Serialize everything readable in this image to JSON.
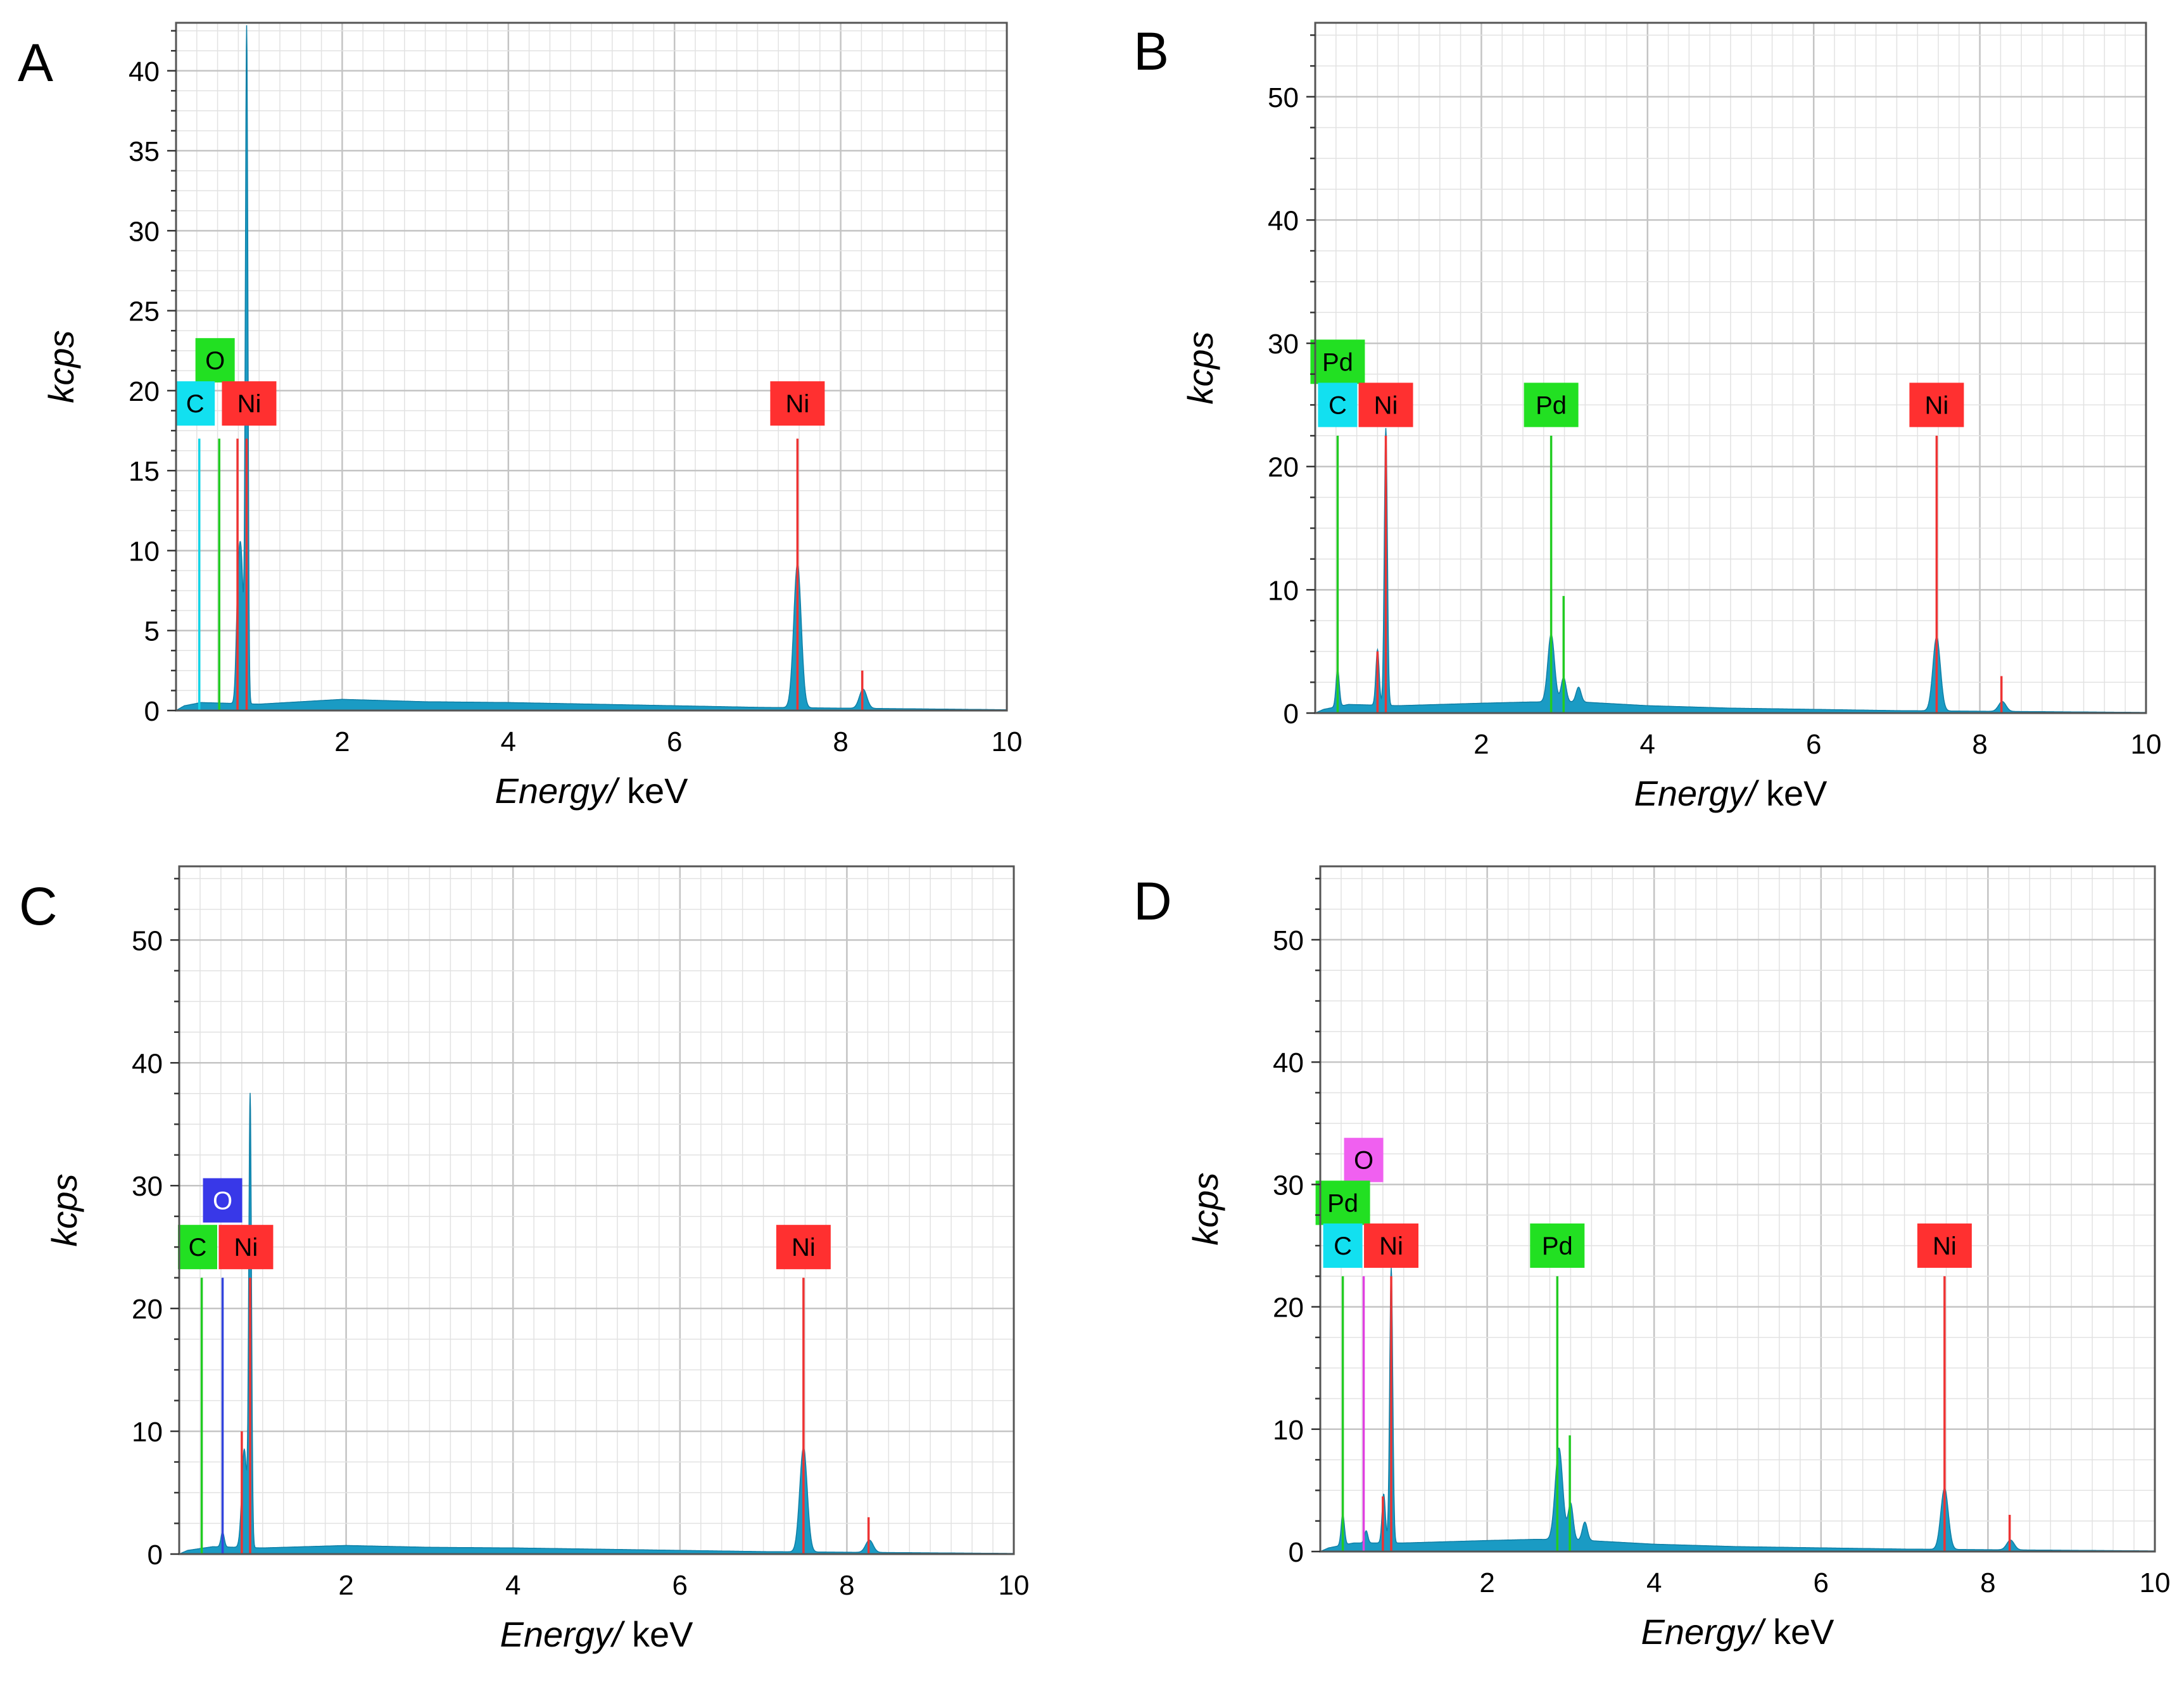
{
  "chart_data": [
    {
      "type": "area",
      "panel_label": "A",
      "xlabel_italic": "Energy/",
      "xlabel_unit": " keV",
      "ylabel": "kcps",
      "xlim": [
        0,
        10
      ],
      "ylim": [
        0,
        43
      ],
      "xticks": [
        2,
        4,
        6,
        8,
        10
      ],
      "yticks": [
        0,
        5,
        10,
        15,
        20,
        25,
        30,
        35,
        40
      ],
      "grid": true,
      "spectrum_color": "#1a9bc4",
      "spectrum": {
        "baseline": [
          [
            0.0,
            0
          ],
          [
            0.1,
            0.3
          ],
          [
            0.3,
            0.5
          ],
          [
            1.0,
            0.4
          ],
          [
            2.0,
            0.7
          ],
          [
            3.0,
            0.55
          ],
          [
            4.0,
            0.5
          ],
          [
            5.0,
            0.4
          ],
          [
            6.0,
            0.3
          ],
          [
            7.0,
            0.2
          ],
          [
            8.0,
            0.15
          ],
          [
            9.0,
            0.1
          ],
          [
            10.0,
            0.05
          ]
        ],
        "peaks": [
          {
            "center": 0.85,
            "height": 41.8,
            "width": 0.015
          },
          {
            "center": 0.78,
            "height": 9.5,
            "width": 0.03
          },
          {
            "center": 0.74,
            "height": 3.5,
            "width": 0.02
          },
          {
            "center": 7.48,
            "height": 9.0,
            "width": 0.045
          },
          {
            "center": 8.27,
            "height": 1.2,
            "width": 0.045
          }
        ]
      },
      "element_lines": [
        {
          "energy": 0.28,
          "height": 17,
          "color": "#12d4e6"
        },
        {
          "energy": 0.52,
          "height": 17,
          "color": "#22cc22"
        },
        {
          "energy": 0.74,
          "height": 17,
          "color": "#ee3333"
        },
        {
          "energy": 0.85,
          "height": 17,
          "color": "#ee3333"
        },
        {
          "energy": 7.48,
          "height": 17,
          "color": "#ee3333"
        },
        {
          "energy": 8.26,
          "height": 2.5,
          "color": "#ee3333"
        }
      ],
      "tags": [
        {
          "text": "O",
          "energy": 0.47,
          "value": 21.9,
          "bg": "#22e022",
          "fg": "#000000"
        },
        {
          "text": "C",
          "energy": 0.23,
          "value": 19.2,
          "bg": "#12e0f0",
          "fg": "#000000"
        },
        {
          "text": "Ni",
          "energy": 0.88,
          "value": 19.2,
          "bg": "#ff3030",
          "fg": "#000000"
        },
        {
          "text": "Ni",
          "energy": 7.48,
          "value": 19.2,
          "bg": "#ff3030",
          "fg": "#000000"
        }
      ]
    },
    {
      "type": "area",
      "panel_label": "B",
      "xlabel_italic": "Energy/",
      "xlabel_unit": " keV",
      "ylabel": "kcps",
      "xlim": [
        0,
        10
      ],
      "ylim": [
        0,
        56
      ],
      "xticks": [
        2,
        4,
        6,
        8,
        10
      ],
      "yticks": [
        0,
        10,
        20,
        30,
        40,
        50
      ],
      "grid": true,
      "spectrum_color": "#1a9bc4",
      "spectrum": {
        "baseline": [
          [
            0.0,
            0
          ],
          [
            0.1,
            0.3
          ],
          [
            0.4,
            0.7
          ],
          [
            1.0,
            0.6
          ],
          [
            2.0,
            0.8
          ],
          [
            2.6,
            0.9
          ],
          [
            3.2,
            0.9
          ],
          [
            4.0,
            0.6
          ],
          [
            5.0,
            0.4
          ],
          [
            6.0,
            0.3
          ],
          [
            7.0,
            0.2
          ],
          [
            8.0,
            0.15
          ],
          [
            9.0,
            0.1
          ],
          [
            10.0,
            0.05
          ]
        ],
        "peaks": [
          {
            "center": 0.27,
            "height": 3.0,
            "width": 0.02
          },
          {
            "center": 0.85,
            "height": 22.5,
            "width": 0.018
          },
          {
            "center": 0.75,
            "height": 4.5,
            "width": 0.02
          },
          {
            "center": 2.84,
            "height": 5.5,
            "width": 0.04
          },
          {
            "center": 2.99,
            "height": 2.0,
            "width": 0.03
          },
          {
            "center": 3.17,
            "height": 1.2,
            "width": 0.03
          },
          {
            "center": 7.48,
            "height": 6.0,
            "width": 0.045
          },
          {
            "center": 8.27,
            "height": 0.8,
            "width": 0.045
          }
        ]
      },
      "element_lines": [
        {
          "energy": 0.27,
          "height": 22.5,
          "color": "#22cc22"
        },
        {
          "energy": 0.75,
          "height": 5,
          "color": "#ee3333"
        },
        {
          "energy": 0.85,
          "height": 22.5,
          "color": "#ee3333"
        },
        {
          "energy": 2.84,
          "height": 22.5,
          "color": "#22cc22"
        },
        {
          "energy": 2.99,
          "height": 9.5,
          "color": "#22cc22"
        },
        {
          "energy": 7.48,
          "height": 22.5,
          "color": "#ee3333"
        },
        {
          "energy": 8.26,
          "height": 3,
          "color": "#ee3333"
        }
      ],
      "tags": [
        {
          "text": "Pd",
          "energy": 0.27,
          "value": 28.5,
          "bg": "#22e022",
          "fg": "#000000"
        },
        {
          "text": "C",
          "energy": 0.27,
          "value": 25.0,
          "bg": "#12e0f0",
          "fg": "#000000"
        },
        {
          "text": "Ni",
          "energy": 0.85,
          "value": 25.0,
          "bg": "#ff3030",
          "fg": "#000000"
        },
        {
          "text": "Pd",
          "energy": 2.84,
          "value": 25.0,
          "bg": "#22e022",
          "fg": "#000000"
        },
        {
          "text": "Ni",
          "energy": 7.48,
          "value": 25.0,
          "bg": "#ff3030",
          "fg": "#000000"
        }
      ]
    },
    {
      "type": "area",
      "panel_label": "C",
      "xlabel_italic": "Energy/",
      "xlabel_unit": " keV",
      "ylabel": "kcps",
      "xlim": [
        0,
        10
      ],
      "ylim": [
        0,
        56
      ],
      "xticks": [
        2,
        4,
        6,
        8,
        10
      ],
      "yticks": [
        0,
        10,
        20,
        30,
        40,
        50
      ],
      "grid": true,
      "spectrum_color": "#1a9bc4",
      "spectrum": {
        "baseline": [
          [
            0.0,
            0
          ],
          [
            0.1,
            0.3
          ],
          [
            0.4,
            0.6
          ],
          [
            1.0,
            0.5
          ],
          [
            2.0,
            0.7
          ],
          [
            3.0,
            0.55
          ],
          [
            4.0,
            0.5
          ],
          [
            5.0,
            0.4
          ],
          [
            6.0,
            0.3
          ],
          [
            7.0,
            0.2
          ],
          [
            8.0,
            0.15
          ],
          [
            9.0,
            0.1
          ],
          [
            10.0,
            0.05
          ]
        ],
        "peaks": [
          {
            "center": 0.52,
            "height": 1.2,
            "width": 0.02
          },
          {
            "center": 0.85,
            "height": 36.5,
            "width": 0.016
          },
          {
            "center": 0.78,
            "height": 8.0,
            "width": 0.03
          },
          {
            "center": 7.48,
            "height": 8.5,
            "width": 0.045
          },
          {
            "center": 8.27,
            "height": 1.0,
            "width": 0.045
          }
        ]
      },
      "element_lines": [
        {
          "energy": 0.27,
          "height": 22.5,
          "color": "#22cc22"
        },
        {
          "energy": 0.52,
          "height": 22.5,
          "color": "#3344dd"
        },
        {
          "energy": 0.75,
          "height": 10,
          "color": "#ee3333"
        },
        {
          "energy": 0.85,
          "height": 22.5,
          "color": "#ee3333"
        },
        {
          "energy": 7.48,
          "height": 22.5,
          "color": "#ee3333"
        },
        {
          "energy": 8.26,
          "height": 3,
          "color": "#ee3333"
        }
      ],
      "tags": [
        {
          "text": "O",
          "energy": 0.52,
          "value": 28.8,
          "bg": "#3838e8",
          "fg": "#ffffff"
        },
        {
          "text": "C",
          "energy": 0.22,
          "value": 25.0,
          "bg": "#22e022",
          "fg": "#000000"
        },
        {
          "text": "Ni",
          "energy": 0.8,
          "value": 25.0,
          "bg": "#ff3030",
          "fg": "#000000"
        },
        {
          "text": "Ni",
          "energy": 7.48,
          "value": 25.0,
          "bg": "#ff3030",
          "fg": "#000000"
        }
      ]
    },
    {
      "type": "area",
      "panel_label": "D",
      "xlabel_italic": "Energy/",
      "xlabel_unit": " keV",
      "ylabel": "kcps",
      "xlim": [
        0,
        10
      ],
      "ylim": [
        0,
        56
      ],
      "xticks": [
        2,
        4,
        6,
        8,
        10
      ],
      "yticks": [
        0,
        10,
        20,
        30,
        40,
        50
      ],
      "grid": true,
      "spectrum_color": "#1a9bc4",
      "spectrum": {
        "baseline": [
          [
            0.0,
            0
          ],
          [
            0.1,
            0.3
          ],
          [
            0.4,
            0.7
          ],
          [
            1.0,
            0.7
          ],
          [
            2.0,
            0.9
          ],
          [
            2.6,
            1.0
          ],
          [
            3.2,
            0.9
          ],
          [
            4.0,
            0.6
          ],
          [
            5.0,
            0.4
          ],
          [
            6.0,
            0.3
          ],
          [
            7.0,
            0.2
          ],
          [
            8.0,
            0.15
          ],
          [
            9.0,
            0.1
          ],
          [
            10.0,
            0.05
          ]
        ],
        "peaks": [
          {
            "center": 0.27,
            "height": 2.5,
            "width": 0.02
          },
          {
            "center": 0.55,
            "height": 1.0,
            "width": 0.02
          },
          {
            "center": 0.85,
            "height": 22.5,
            "width": 0.018
          },
          {
            "center": 0.76,
            "height": 4.0,
            "width": 0.02
          },
          {
            "center": 2.86,
            "height": 7.5,
            "width": 0.045
          },
          {
            "center": 3.0,
            "height": 3.0,
            "width": 0.03
          },
          {
            "center": 3.17,
            "height": 1.5,
            "width": 0.03
          },
          {
            "center": 7.48,
            "height": 5.0,
            "width": 0.045
          },
          {
            "center": 8.27,
            "height": 0.8,
            "width": 0.045
          }
        ]
      },
      "element_lines": [
        {
          "energy": 0.27,
          "height": 22.5,
          "color": "#22cc22"
        },
        {
          "energy": 0.52,
          "height": 22.5,
          "color": "#e040e0"
        },
        {
          "energy": 0.75,
          "height": 4.5,
          "color": "#ee3333"
        },
        {
          "energy": 0.85,
          "height": 22.5,
          "color": "#ee3333"
        },
        {
          "energy": 2.84,
          "height": 22.5,
          "color": "#22cc22"
        },
        {
          "energy": 2.99,
          "height": 9.5,
          "color": "#22cc22"
        },
        {
          "energy": 7.48,
          "height": 22.5,
          "color": "#ee3333"
        },
        {
          "energy": 8.26,
          "height": 3,
          "color": "#ee3333"
        }
      ],
      "tags": [
        {
          "text": "O",
          "energy": 0.52,
          "value": 32.0,
          "bg": "#f060f0",
          "fg": "#000000"
        },
        {
          "text": "Pd",
          "energy": 0.27,
          "value": 28.5,
          "bg": "#22e022",
          "fg": "#000000"
        },
        {
          "text": "C",
          "energy": 0.27,
          "value": 25.0,
          "bg": "#12e0f0",
          "fg": "#000000"
        },
        {
          "text": "Ni",
          "energy": 0.85,
          "value": 25.0,
          "bg": "#ff3030",
          "fg": "#000000"
        },
        {
          "text": "Pd",
          "energy": 2.84,
          "value": 25.0,
          "bg": "#22e022",
          "fg": "#000000"
        },
        {
          "text": "Ni",
          "energy": 7.48,
          "value": 25.0,
          "bg": "#ff3030",
          "fg": "#000000"
        }
      ]
    }
  ]
}
